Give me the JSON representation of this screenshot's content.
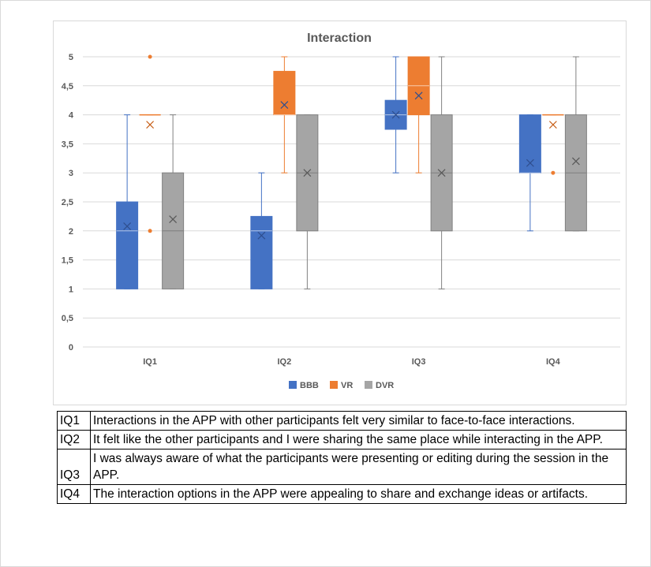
{
  "chart_data": {
    "type": "boxplot",
    "title": "Interaction",
    "categories": [
      "IQ1",
      "IQ2",
      "IQ3",
      "IQ4"
    ],
    "ylim": [
      0,
      5
    ],
    "yticks": [
      "0",
      "0,5",
      "1",
      "1,5",
      "2",
      "2,5",
      "3",
      "3,5",
      "4",
      "4,5",
      "5"
    ],
    "grid": true,
    "legend_position": "bottom",
    "series": [
      {
        "name": "BBB",
        "color": "#4472c4",
        "boxes": [
          {
            "min": 1,
            "q1": 1,
            "median": 2,
            "q3": 2.5,
            "max": 4,
            "mean": 2.08,
            "outliers": []
          },
          {
            "min": 1,
            "q1": 1,
            "median": 2,
            "q3": 2.25,
            "max": 3,
            "mean": 1.92,
            "outliers": []
          },
          {
            "min": 3,
            "q1": 3.75,
            "median": 4,
            "q3": 4.25,
            "max": 5,
            "mean": 4.0,
            "outliers": []
          },
          {
            "min": 2,
            "q1": 3,
            "median": 3,
            "q3": 4,
            "max": 4,
            "mean": 3.17,
            "outliers": []
          }
        ]
      },
      {
        "name": "VR",
        "color": "#ed7d31",
        "boxes": [
          {
            "min": 4,
            "q1": 4,
            "median": 4,
            "q3": 4,
            "max": 4,
            "mean": 3.83,
            "outliers": [
              5,
              2
            ]
          },
          {
            "min": 3,
            "q1": 4,
            "median": 4,
            "q3": 4.75,
            "max": 5,
            "mean": 4.17,
            "outliers": []
          },
          {
            "min": 3,
            "q1": 4,
            "median": 4.5,
            "q3": 5,
            "max": 5,
            "mean": 4.33,
            "outliers": []
          },
          {
            "min": 4,
            "q1": 4,
            "median": 4,
            "q3": 4,
            "max": 4,
            "mean": 3.83,
            "outliers": [
              3
            ]
          }
        ]
      },
      {
        "name": "DVR",
        "color": "#a5a5a5",
        "boxes": [
          {
            "min": 1,
            "q1": 1,
            "median": 2,
            "q3": 3,
            "max": 4,
            "mean": 2.2,
            "outliers": []
          },
          {
            "min": 1,
            "q1": 2,
            "median": 3,
            "q3": 4,
            "max": 4,
            "mean": 3.0,
            "outliers": []
          },
          {
            "min": 1,
            "q1": 2,
            "median": 3,
            "q3": 4,
            "max": 5,
            "mean": 3.0,
            "outliers": []
          },
          {
            "min": 2,
            "q1": 2,
            "median": 3,
            "q3": 4,
            "max": 5,
            "mean": 3.2,
            "outliers": []
          }
        ]
      }
    ]
  },
  "questions": [
    {
      "code": "IQ1",
      "text": "Interactions in the APP with other participants felt very similar to face-to-face interactions."
    },
    {
      "code": "IQ2",
      "text": "It felt like the other participants and I were sharing the same place while interacting in the APP."
    },
    {
      "code": "IQ3",
      "text": "I was always aware of what the participants were presenting or editing during the session in the APP."
    },
    {
      "code": "IQ4",
      "text": "The interaction options in the APP were appealing to share and exchange ideas or artifacts."
    }
  ]
}
